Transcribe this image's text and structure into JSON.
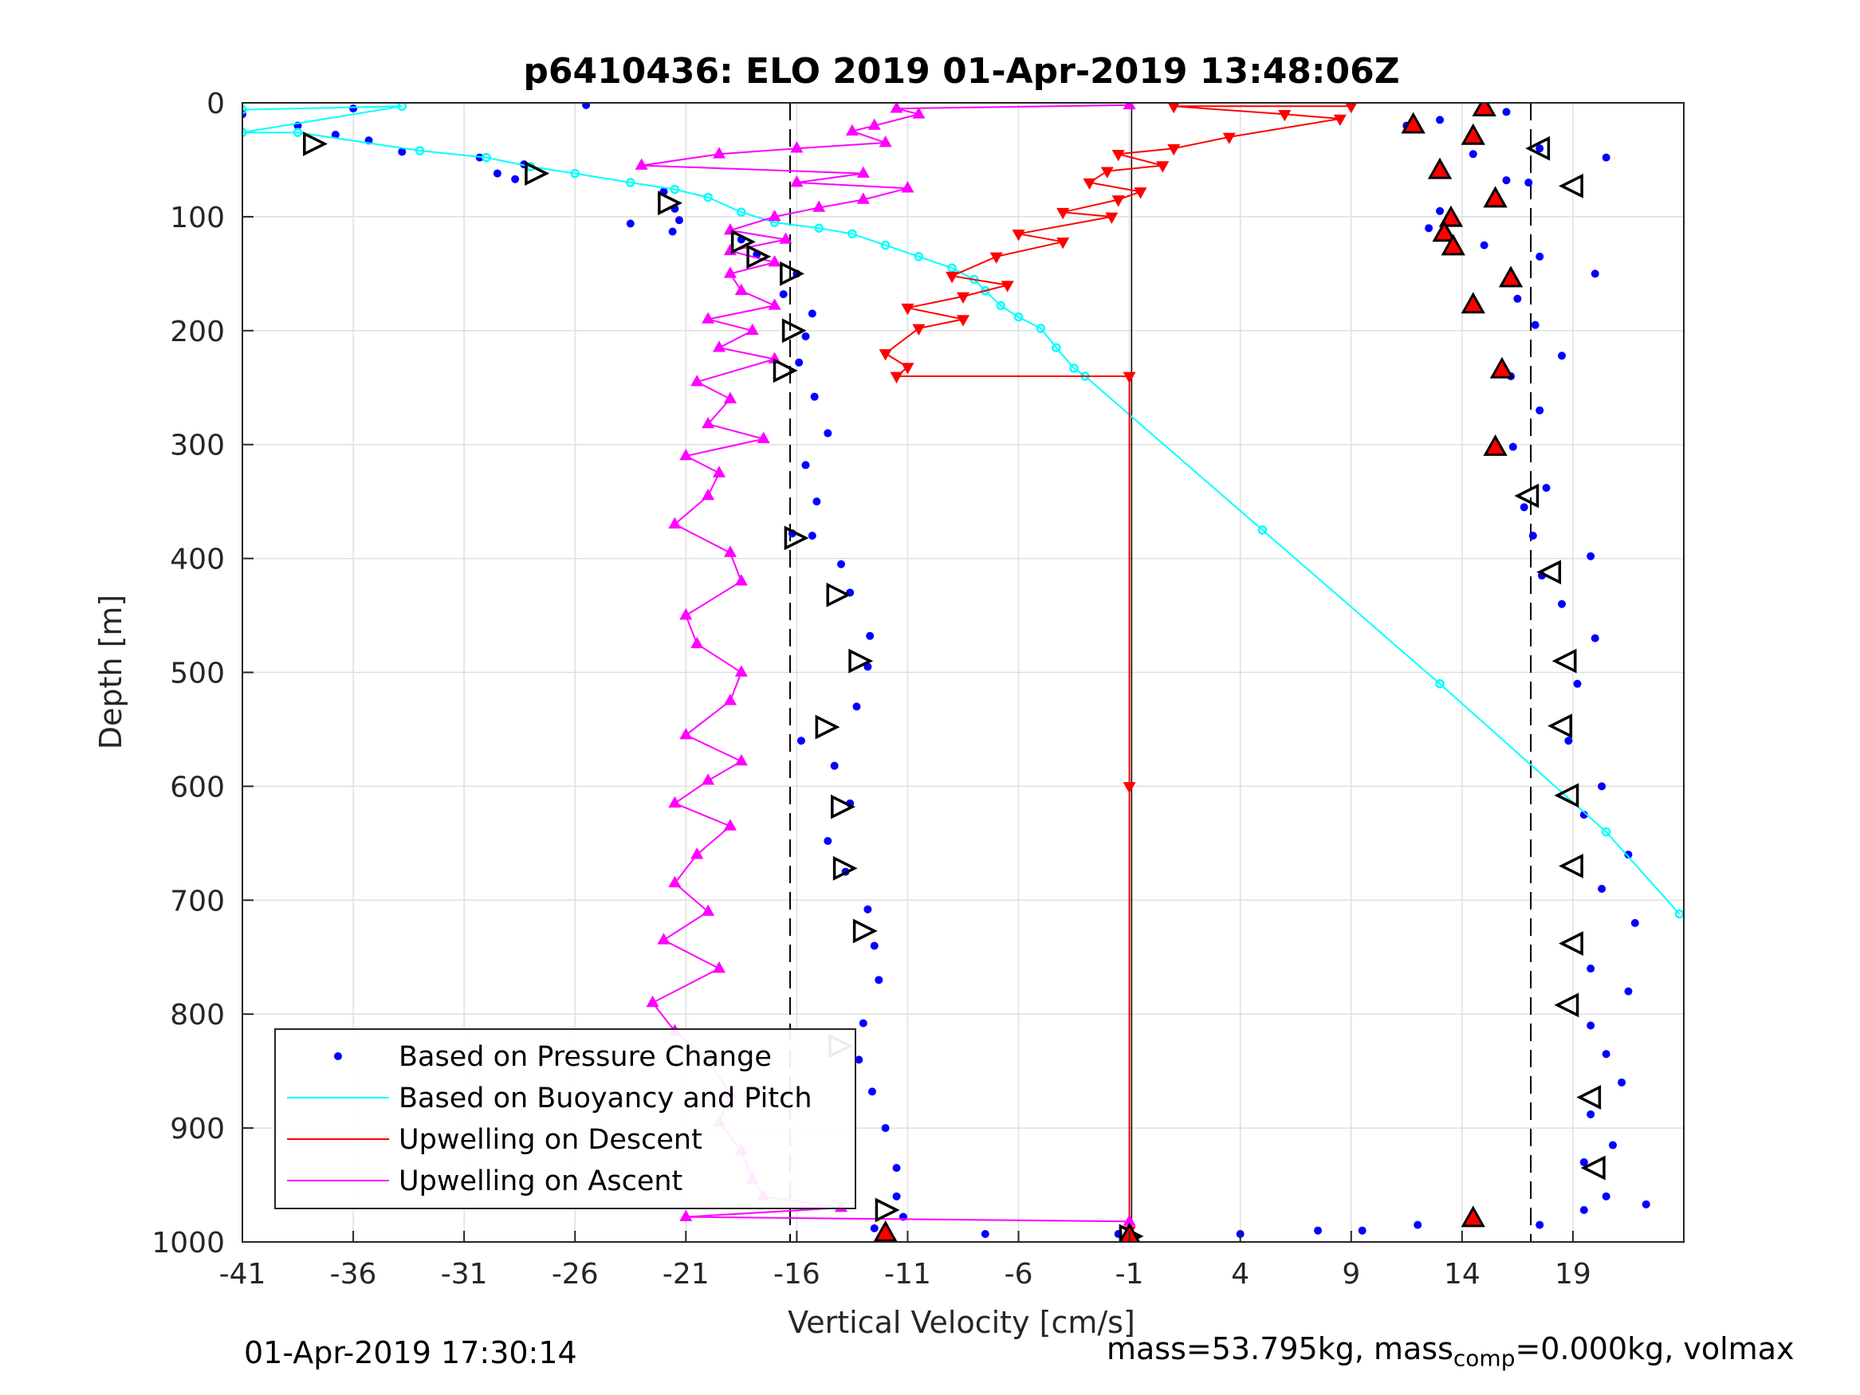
{
  "chart_data": {
    "type": "scatter",
    "title": "p6410436: ELO 2019 01-Apr-2019 13:48:06Z",
    "xlabel": "Vertical Velocity [cm/s]",
    "ylabel": "Depth [m]",
    "xlim": [
      -41,
      24
    ],
    "ylim": [
      0,
      1000
    ],
    "y_reversed": true,
    "xticks": [
      -41,
      -36,
      -31,
      -26,
      -21,
      -16,
      -11,
      -6,
      -1,
      4,
      9,
      14,
      19
    ],
    "yticks": [
      0,
      100,
      200,
      300,
      400,
      500,
      600,
      700,
      800,
      900,
      1000
    ],
    "grid": true,
    "legend_position": "bottom-left",
    "vlines_dashed": [
      -16.3,
      17.1
    ],
    "vline_solid": -0.9,
    "colors": {
      "pressure": "#0000ff",
      "buoyancy": "#00ffff",
      "descent": "#ff0000",
      "ascent": "#ff00ff",
      "axis": "#262626",
      "grid": "#dfdfdf"
    },
    "series": [
      {
        "name": "Based on Pressure Change",
        "marker": "dot",
        "points": [
          [
            -41,
            10
          ],
          [
            -36,
            5
          ],
          [
            -25.5,
            2
          ],
          [
            -38.5,
            20
          ],
          [
            -36.8,
            28
          ],
          [
            -35.3,
            33
          ],
          [
            -33.8,
            43
          ],
          [
            -30.3,
            48
          ],
          [
            -28.3,
            54
          ],
          [
            -29.5,
            62
          ],
          [
            -28.7,
            67
          ],
          [
            -22.0,
            78
          ],
          [
            -21.5,
            93
          ],
          [
            -21.3,
            103
          ],
          [
            -23.5,
            106
          ],
          [
            -21.6,
            113
          ],
          [
            -18.5,
            120
          ],
          [
            -17.8,
            133
          ],
          [
            -16.0,
            150
          ],
          [
            -16.6,
            168
          ],
          [
            -15.3,
            185
          ],
          [
            -15.6,
            205
          ],
          [
            -15.9,
            228
          ],
          [
            -15.2,
            258
          ],
          [
            -14.6,
            290
          ],
          [
            -15.6,
            318
          ],
          [
            -15.1,
            350
          ],
          [
            -16.2,
            378
          ],
          [
            -15.3,
            380
          ],
          [
            -14.0,
            405
          ],
          [
            -13.6,
            430
          ],
          [
            -12.7,
            468
          ],
          [
            -12.8,
            495
          ],
          [
            -13.3,
            530
          ],
          [
            -15.8,
            560
          ],
          [
            -14.3,
            582
          ],
          [
            -13.6,
            615
          ],
          [
            -14.6,
            648
          ],
          [
            -13.8,
            675
          ],
          [
            -12.8,
            708
          ],
          [
            -12.5,
            740
          ],
          [
            -12.3,
            770
          ],
          [
            -13.0,
            808
          ],
          [
            -13.2,
            840
          ],
          [
            -12.6,
            868
          ],
          [
            -12.0,
            900
          ],
          [
            -11.5,
            935
          ],
          [
            -11.5,
            960
          ],
          [
            -11.2,
            978
          ],
          [
            -12.5,
            988
          ],
          [
            -7.5,
            993
          ],
          [
            -1.5,
            993
          ],
          [
            4.0,
            993
          ],
          [
            7.5,
            990
          ],
          [
            9.5,
            990
          ],
          [
            12.0,
            985
          ],
          [
            11.5,
            20
          ],
          [
            13.0,
            15
          ],
          [
            14.5,
            45
          ],
          [
            16.0,
            8
          ],
          [
            17.5,
            40
          ],
          [
            20.5,
            48
          ],
          [
            17.0,
            70
          ],
          [
            16.0,
            68
          ],
          [
            13.0,
            95
          ],
          [
            12.5,
            110
          ],
          [
            15.0,
            125
          ],
          [
            17.5,
            135
          ],
          [
            20.0,
            150
          ],
          [
            16.5,
            172
          ],
          [
            17.3,
            195
          ],
          [
            18.5,
            222
          ],
          [
            16.2,
            240
          ],
          [
            17.5,
            270
          ],
          [
            16.3,
            302
          ],
          [
            17.8,
            338
          ],
          [
            16.8,
            355
          ],
          [
            17.2,
            380
          ],
          [
            19.8,
            398
          ],
          [
            17.6,
            415
          ],
          [
            18.5,
            440
          ],
          [
            20.0,
            470
          ],
          [
            19.2,
            510
          ],
          [
            18.8,
            560
          ],
          [
            20.3,
            600
          ],
          [
            19.5,
            625
          ],
          [
            21.5,
            660
          ],
          [
            20.3,
            690
          ],
          [
            21.8,
            720
          ],
          [
            19.8,
            760
          ],
          [
            21.5,
            780
          ],
          [
            19.8,
            810
          ],
          [
            20.5,
            835
          ],
          [
            21.2,
            860
          ],
          [
            19.8,
            888
          ],
          [
            20.8,
            915
          ],
          [
            19.5,
            930
          ],
          [
            20.5,
            960
          ],
          [
            19.5,
            972
          ],
          [
            22.3,
            967
          ],
          [
            17.5,
            985
          ]
        ]
      },
      {
        "name": "Based on Buoyancy and Pitch",
        "marker": "circle-line",
        "points": [
          [
            -41,
            6
          ],
          [
            -33.8,
            3
          ],
          [
            -41,
            26
          ],
          [
            -38.5,
            26
          ],
          [
            -33.0,
            42
          ],
          [
            -30.0,
            48
          ],
          [
            -28.0,
            56
          ],
          [
            -26.0,
            62
          ],
          [
            -23.5,
            70
          ],
          [
            -21.5,
            76
          ],
          [
            -20.0,
            83
          ],
          [
            -18.5,
            96
          ],
          [
            -17.0,
            105
          ],
          [
            -15.0,
            110
          ],
          [
            -13.5,
            115
          ],
          [
            -12.0,
            125
          ],
          [
            -10.5,
            135
          ],
          [
            -9.0,
            145
          ],
          [
            -8.0,
            155
          ],
          [
            -7.5,
            165
          ],
          [
            -6.8,
            178
          ],
          [
            -6.0,
            188
          ],
          [
            -5.0,
            198
          ],
          [
            -4.3,
            215
          ],
          [
            -3.5,
            233
          ],
          [
            -3.0,
            240
          ],
          [
            5.0,
            375
          ],
          [
            13.0,
            510
          ],
          [
            20.5,
            640
          ],
          [
            23.8,
            712
          ]
        ]
      },
      {
        "name": "Upwelling on Descent",
        "marker": "triangle-down-line",
        "points": [
          [
            9.0,
            3
          ],
          [
            1.0,
            3
          ],
          [
            6.0,
            10
          ],
          [
            8.5,
            14
          ],
          [
            3.5,
            30
          ],
          [
            1.0,
            40
          ],
          [
            -1.5,
            45
          ],
          [
            0.5,
            55
          ],
          [
            -2.0,
            60
          ],
          [
            -2.8,
            70
          ],
          [
            -0.5,
            78
          ],
          [
            -1.5,
            85
          ],
          [
            -4.0,
            96
          ],
          [
            -1.8,
            100
          ],
          [
            -6.0,
            115
          ],
          [
            -4.0,
            122
          ],
          [
            -7.0,
            135
          ],
          [
            -9.0,
            152
          ],
          [
            -6.5,
            160
          ],
          [
            -8.5,
            170
          ],
          [
            -11.0,
            180
          ],
          [
            -8.5,
            190
          ],
          [
            -10.5,
            198
          ],
          [
            -12.0,
            220
          ],
          [
            -11.0,
            232
          ],
          [
            -11.5,
            240
          ],
          [
            -1.0,
            240
          ],
          [
            -1.0,
            600
          ],
          [
            -1.0,
            990
          ]
        ]
      },
      {
        "name": "Upwelling on Ascent",
        "marker": "triangle-up-line",
        "points": [
          [
            -1.0,
            2
          ],
          [
            -11.5,
            5
          ],
          [
            -10.5,
            10
          ],
          [
            -12.5,
            20
          ],
          [
            -13.5,
            25
          ],
          [
            -12.0,
            35
          ],
          [
            -16.0,
            40
          ],
          [
            -19.5,
            45
          ],
          [
            -23.0,
            55
          ],
          [
            -13.0,
            62
          ],
          [
            -16.0,
            70
          ],
          [
            -11.0,
            75
          ],
          [
            -13.0,
            85
          ],
          [
            -15.0,
            92
          ],
          [
            -17.0,
            100
          ],
          [
            -19.0,
            112
          ],
          [
            -16.5,
            120
          ],
          [
            -19.0,
            130
          ],
          [
            -17.0,
            140
          ],
          [
            -19.0,
            150
          ],
          [
            -18.5,
            165
          ],
          [
            -17.0,
            178
          ],
          [
            -20.0,
            190
          ],
          [
            -18.0,
            200
          ],
          [
            -19.5,
            215
          ],
          [
            -17.0,
            225
          ],
          [
            -20.5,
            245
          ],
          [
            -19.0,
            260
          ],
          [
            -20.0,
            282
          ],
          [
            -17.5,
            295
          ],
          [
            -21.0,
            310
          ],
          [
            -19.5,
            325
          ],
          [
            -20.0,
            345
          ],
          [
            -21.5,
            370
          ],
          [
            -19.0,
            395
          ],
          [
            -18.5,
            420
          ],
          [
            -21.0,
            450
          ],
          [
            -20.5,
            475
          ],
          [
            -18.5,
            500
          ],
          [
            -19.0,
            525
          ],
          [
            -21.0,
            555
          ],
          [
            -18.5,
            578
          ],
          [
            -20.0,
            595
          ],
          [
            -21.5,
            615
          ],
          [
            -19.0,
            635
          ],
          [
            -20.5,
            660
          ],
          [
            -21.5,
            685
          ],
          [
            -20.0,
            710
          ],
          [
            -22.0,
            735
          ],
          [
            -19.5,
            760
          ],
          [
            -22.5,
            790
          ],
          [
            -21.5,
            815
          ],
          [
            -20.0,
            840
          ],
          [
            -19.0,
            870
          ],
          [
            -19.5,
            895
          ],
          [
            -18.5,
            920
          ],
          [
            -18.0,
            945
          ],
          [
            -17.5,
            960
          ],
          [
            -14.0,
            970
          ],
          [
            -21.0,
            978
          ],
          [
            -1.0,
            982
          ]
        ]
      }
    ],
    "markers_open_triangles": [
      [
        -37.8,
        36
      ],
      [
        -27.8,
        62
      ],
      [
        -21.8,
        88
      ],
      [
        -18.5,
        122
      ],
      [
        -17.8,
        135
      ],
      [
        -16.3,
        150
      ],
      [
        -16.2,
        200
      ],
      [
        -16.6,
        235
      ],
      [
        -16.1,
        382
      ],
      [
        -14.2,
        432
      ],
      [
        -13.2,
        490
      ],
      [
        -14.7,
        548
      ],
      [
        -14.0,
        618
      ],
      [
        -13.9,
        672
      ],
      [
        -13.0,
        727
      ],
      [
        -14.1,
        828
      ],
      [
        -12.0,
        972
      ],
      [
        17.5,
        40
      ],
      [
        19.0,
        73
      ],
      [
        17.0,
        345
      ],
      [
        18.0,
        412
      ],
      [
        18.7,
        490
      ],
      [
        18.5,
        547
      ],
      [
        18.8,
        608
      ],
      [
        19.0,
        670
      ],
      [
        19.0,
        738
      ],
      [
        18.8,
        792
      ],
      [
        19.8,
        873
      ],
      [
        20.0,
        935
      ],
      [
        -1.0,
        995
      ]
    ],
    "markers_red_triangles": [
      [
        15.0,
        5
      ],
      [
        11.8,
        20
      ],
      [
        14.5,
        30
      ],
      [
        13.0,
        60
      ],
      [
        15.5,
        85
      ],
      [
        13.5,
        102
      ],
      [
        13.2,
        115
      ],
      [
        13.6,
        127
      ],
      [
        16.2,
        155
      ],
      [
        14.5,
        178
      ],
      [
        15.8,
        235
      ],
      [
        15.5,
        303
      ],
      [
        14.5,
        980
      ],
      [
        -12.0,
        993
      ],
      [
        -1.0,
        995
      ]
    ]
  },
  "footer": {
    "date": "01-Apr-2019 17:30:14",
    "mass_prefix": "mass=53.795kg, mass",
    "mass_sub": "comp",
    "mass_suffix": "=0.000kg, volmax"
  }
}
